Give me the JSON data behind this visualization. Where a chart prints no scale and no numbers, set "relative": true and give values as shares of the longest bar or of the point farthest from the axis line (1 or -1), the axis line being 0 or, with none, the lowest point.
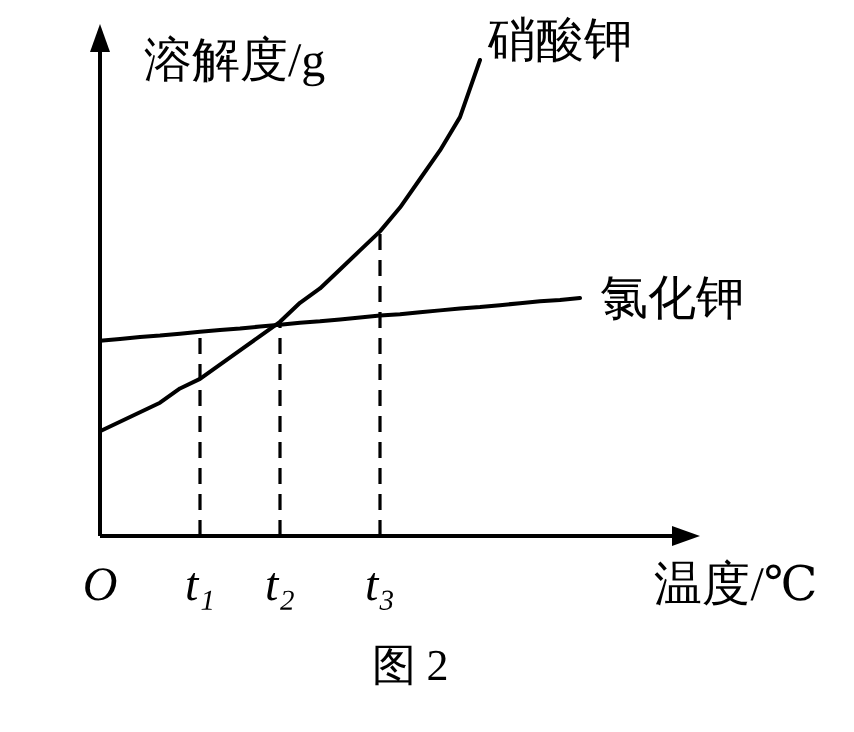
{
  "chart_data": {
    "type": "line",
    "relative": true,
    "ylabel": "溶解度/g",
    "xlabel": "温度/℃",
    "annotations": [
      "图 2"
    ],
    "categories": [
      "O",
      null,
      null,
      null,
      null,
      "t₁",
      null,
      null,
      null,
      "t₂",
      null,
      null,
      null,
      null,
      "t₃",
      null,
      null,
      null,
      null,
      null,
      null,
      null,
      null,
      null,
      null
    ],
    "series": [
      {
        "name": "硝酸钾",
        "color": "#000000",
        "values": [
          0.22,
          0.24,
          0.26,
          0.28,
          0.31,
          0.33,
          0.36,
          0.39,
          0.42,
          0.45,
          0.49,
          0.52,
          0.56,
          0.6,
          0.64,
          0.69,
          0.75,
          0.81,
          0.88,
          1.0,
          null,
          null,
          null,
          null,
          null
        ]
      },
      {
        "name": "氯化钾",
        "color": "#000000",
        "values": [
          0.41,
          0.414,
          0.418,
          0.421,
          0.425,
          0.429,
          0.433,
          0.436,
          0.44,
          0.444,
          0.448,
          0.451,
          0.455,
          0.459,
          0.463,
          0.466,
          0.47,
          0.474,
          0.478,
          0.481,
          0.485,
          0.489,
          0.493,
          0.496,
          0.5
        ]
      }
    ],
    "ref_lines": [
      {
        "axis": "x",
        "value": "t₁",
        "line_style": "dashed"
      },
      {
        "axis": "x",
        "value": "t₂",
        "line_style": "dashed"
      },
      {
        "axis": "x",
        "value": "t₃",
        "line_style": "dashed"
      }
    ]
  }
}
